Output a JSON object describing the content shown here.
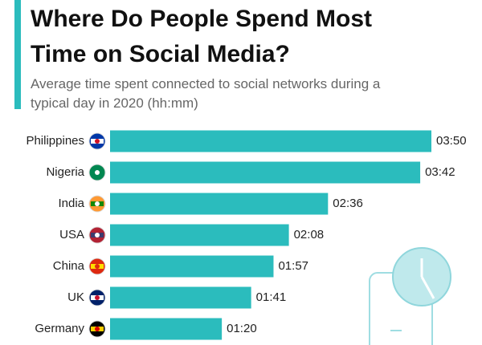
{
  "chart_data": {
    "type": "bar",
    "orientation": "horizontal",
    "title": "Where Do People Spend Most Time on Social Media?",
    "subtitle": "Average time spent connected to social networks during a typical day in 2020 (hh:mm)",
    "categories": [
      "Philippines",
      "Nigeria",
      "India",
      "USA",
      "China",
      "UK",
      "Germany"
    ],
    "values": [
      230,
      222,
      156,
      128,
      117,
      101,
      80
    ],
    "value_labels": [
      "03:50",
      "03:42",
      "02:36",
      "02:08",
      "01:57",
      "01:41",
      "01:20"
    ],
    "color": "#2bbcbd"
  }
}
